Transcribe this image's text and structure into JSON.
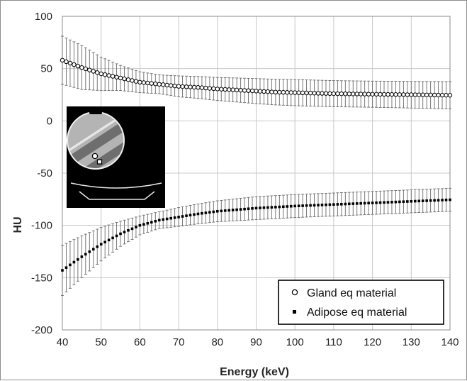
{
  "chart_data": {
    "type": "scatter",
    "xlabel": "Energy (keV)",
    "ylabel": "HU",
    "xlim": [
      40,
      140
    ],
    "ylim": [
      -200,
      100
    ],
    "x_ticks": [
      "40",
      "50",
      "60",
      "70",
      "80",
      "90",
      "100",
      "110",
      "120",
      "130",
      "140"
    ],
    "y_ticks": [
      "100",
      "50",
      "0",
      "-50",
      "-100",
      "-150",
      "-200"
    ],
    "grid": true,
    "legend_position": "bottom-right",
    "x_step": 1,
    "series": [
      {
        "name": "Gland eq material",
        "marker": "open-circle",
        "color": "#000000",
        "anchors": [
          [
            40,
            58
          ],
          [
            45,
            51
          ],
          [
            50,
            45
          ],
          [
            55,
            41
          ],
          [
            60,
            37
          ],
          [
            65,
            35
          ],
          [
            70,
            33
          ],
          [
            75,
            32
          ],
          [
            80,
            30.5
          ],
          [
            85,
            29.5
          ],
          [
            90,
            28.5
          ],
          [
            95,
            27.5
          ],
          [
            100,
            27
          ],
          [
            110,
            26
          ],
          [
            120,
            25.5
          ],
          [
            130,
            25
          ],
          [
            140,
            24.5
          ]
        ],
        "error_anchors": [
          [
            40,
            23
          ],
          [
            45,
            21
          ],
          [
            50,
            16
          ],
          [
            55,
            12
          ],
          [
            60,
            10
          ],
          [
            65,
            9
          ],
          [
            70,
            10
          ],
          [
            80,
            11
          ],
          [
            90,
            12
          ],
          [
            100,
            12.5
          ],
          [
            120,
            12.5
          ],
          [
            140,
            13
          ]
        ]
      },
      {
        "name": "Adipose eq material",
        "marker": "filled-square",
        "color": "#000000",
        "anchors": [
          [
            40,
            -143
          ],
          [
            45,
            -130
          ],
          [
            50,
            -118
          ],
          [
            55,
            -108
          ],
          [
            60,
            -100
          ],
          [
            65,
            -95
          ],
          [
            70,
            -92
          ],
          [
            75,
            -89
          ],
          [
            80,
            -86.5
          ],
          [
            85,
            -85
          ],
          [
            90,
            -83.5
          ],
          [
            95,
            -82.5
          ],
          [
            100,
            -81.5
          ],
          [
            110,
            -80
          ],
          [
            120,
            -78.5
          ],
          [
            130,
            -77
          ],
          [
            140,
            -75.5
          ]
        ],
        "error_anchors": [
          [
            40,
            24
          ],
          [
            45,
            20
          ],
          [
            50,
            16
          ],
          [
            55,
            12
          ],
          [
            60,
            9
          ],
          [
            65,
            8
          ],
          [
            70,
            9
          ],
          [
            80,
            10
          ],
          [
            90,
            11
          ],
          [
            100,
            11
          ],
          [
            120,
            11
          ],
          [
            140,
            11
          ]
        ]
      }
    ]
  },
  "inset": {
    "description": "phantom-ct-slice"
  }
}
